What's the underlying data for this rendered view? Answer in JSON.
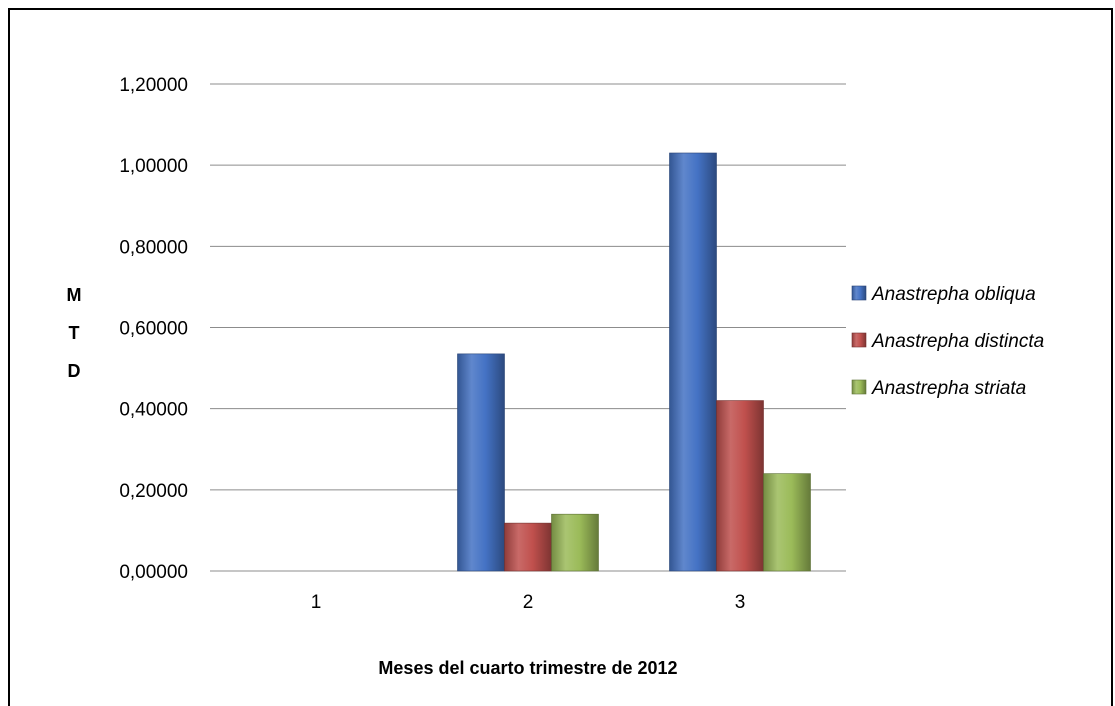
{
  "chart_data": {
    "type": "bar",
    "categories": [
      "1",
      "2",
      "3"
    ],
    "series": [
      {
        "name": "Anastrepha obliqua",
        "values": [
          0,
          0.535,
          1.03
        ],
        "color": "#4472C4"
      },
      {
        "name": "Anastrepha distincta",
        "values": [
          0,
          0.118,
          0.42
        ],
        "color": "#C0504D"
      },
      {
        "name": "Anastrepha striata",
        "values": [
          0,
          0.14,
          0.24
        ],
        "color": "#9BBB59"
      }
    ],
    "y_ticks": [
      "0,00000",
      "0,20000",
      "0,40000",
      "0,60000",
      "0,80000",
      "1,00000",
      "1,20000"
    ],
    "ylim": [
      0,
      1.2
    ],
    "xlabel": "Meses del cuarto trimestre de 2012",
    "ylabel_letters": [
      "M",
      "T",
      "D"
    ],
    "grid": true,
    "legend_position": "right"
  }
}
